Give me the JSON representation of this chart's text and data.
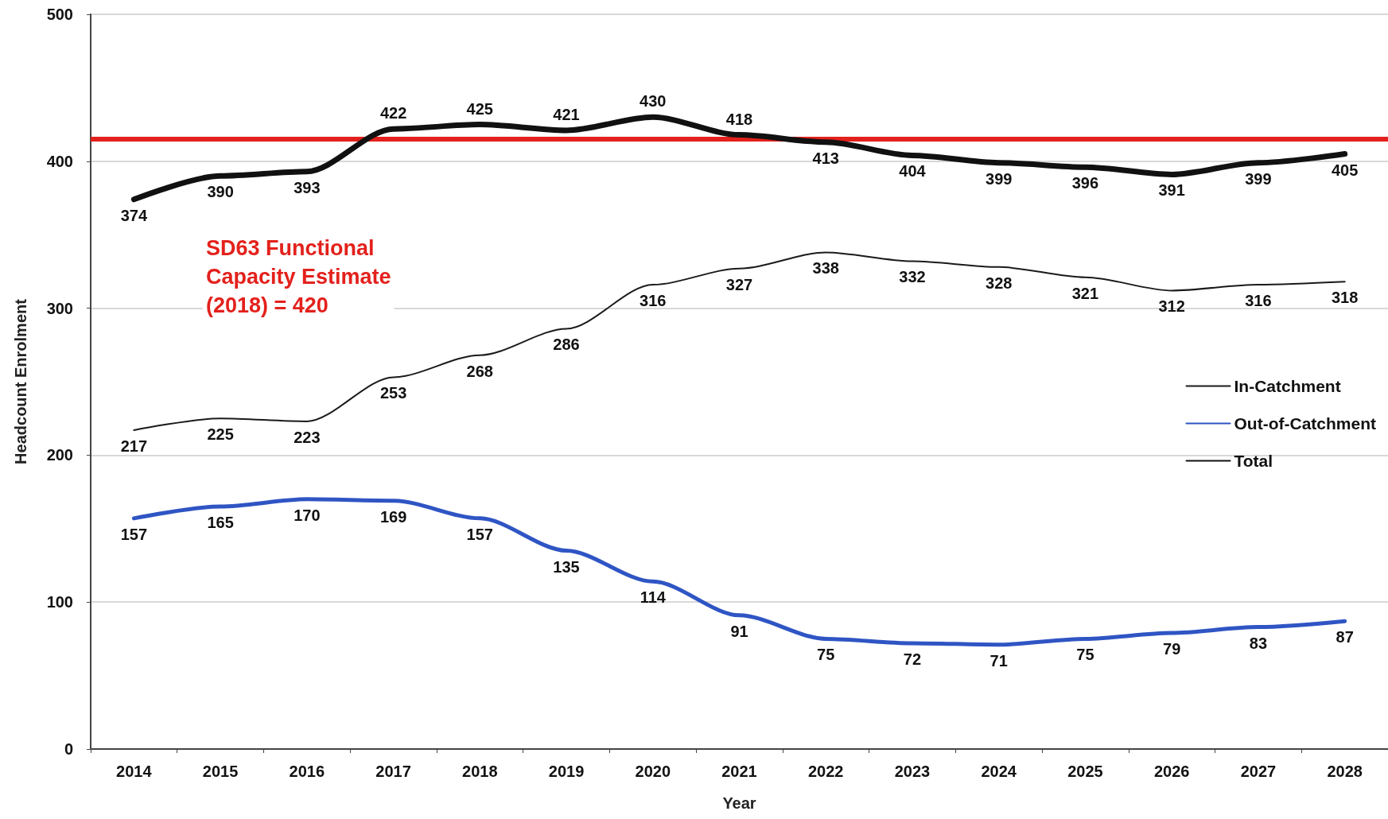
{
  "chart_data": {
    "type": "line",
    "xlabel": "Year",
    "ylabel": "Headcount Enrolment",
    "categories": [
      "2014",
      "2015",
      "2016",
      "2017",
      "2018",
      "2019",
      "2020",
      "2021",
      "2022",
      "2023",
      "2024",
      "2025",
      "2026",
      "2027",
      "2028"
    ],
    "series": [
      {
        "name": "In-Catchment",
        "color": "#1a1a1a",
        "values": [
          217,
          225,
          223,
          253,
          268,
          286,
          316,
          327,
          338,
          332,
          328,
          321,
          312,
          316,
          318
        ]
      },
      {
        "name": "Out-of-Catchment",
        "color": "#2f55c4",
        "values": [
          157,
          165,
          170,
          169,
          157,
          135,
          114,
          91,
          75,
          72,
          71,
          75,
          79,
          83,
          87
        ]
      },
      {
        "name": "Total",
        "color": "#111111",
        "values": [
          374,
          390,
          393,
          422,
          425,
          421,
          430,
          418,
          413,
          404,
          399,
          396,
          391,
          399,
          405
        ]
      }
    ],
    "ylim": [
      0,
      500
    ],
    "yticks": [
      0,
      100,
      200,
      300,
      400,
      500
    ],
    "ref_lines": [
      {
        "axis": "y",
        "value": 415,
        "color": "#e3211c"
      }
    ],
    "annotations": [
      "SD63 Functional Capacity Estimate (2018) = 420"
    ],
    "data_labels": true,
    "grid": "y",
    "legend": "right",
    "marker": "none",
    "line_style": "solid"
  }
}
